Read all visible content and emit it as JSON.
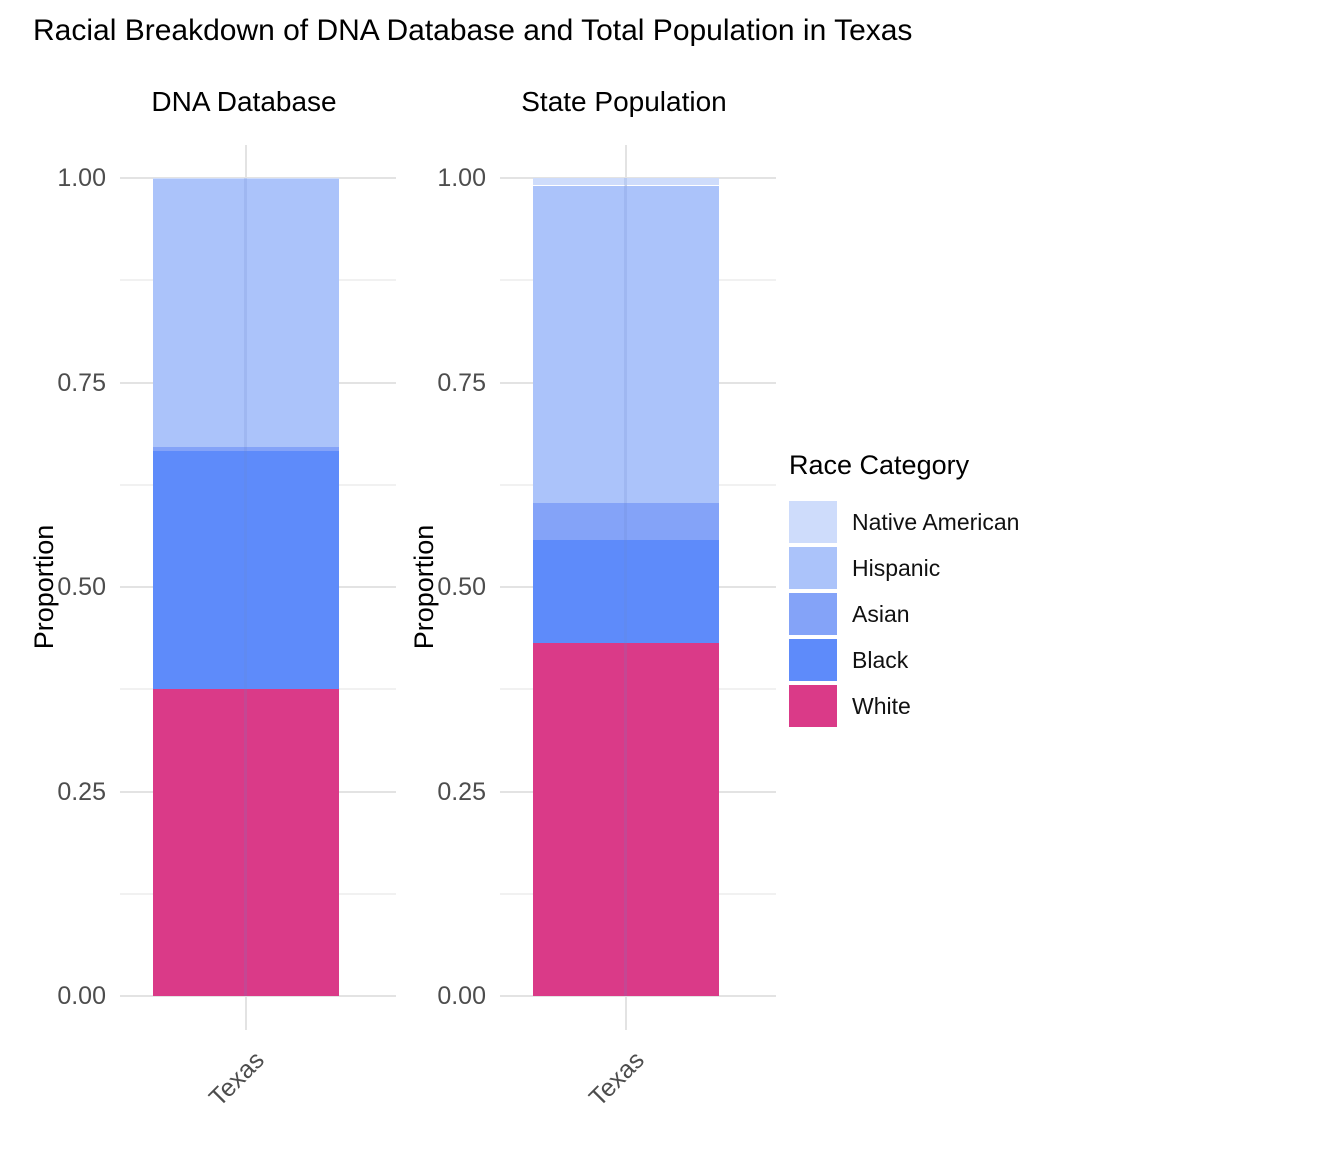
{
  "title": "Racial Breakdown of DNA Database and Total Population in Texas",
  "y_axis": {
    "label": "Proportion",
    "tick_labels": [
      "1.00",
      "0.75",
      "0.50",
      "0.25",
      "0.00"
    ]
  },
  "x_axis": {
    "category": "Texas"
  },
  "legend": {
    "title": "Race Category",
    "items": [
      {
        "label": "Native American",
        "color": "#CEDCFB"
      },
      {
        "label": "Hispanic",
        "color": "#ABC3FA"
      },
      {
        "label": "Asian",
        "color": "#84A3F8"
      },
      {
        "label": "Black",
        "color": "#5E8BFA"
      },
      {
        "label": "White",
        "color": "#DA3A88"
      }
    ]
  },
  "chart_data": {
    "type": "bar",
    "subtype": "stacked-proportion",
    "title": "Racial Breakdown of DNA Database and Total Population in Texas",
    "ylabel": "Proportion",
    "ylim": [
      0,
      1
    ],
    "yticks": [
      1.0,
      0.75,
      0.5,
      0.25,
      0.0
    ],
    "minor_gridlines": [
      0.875,
      0.625,
      0.375,
      0.125
    ],
    "grid": true,
    "legend_position": "right",
    "stack_order_bottom_to_top": [
      "White",
      "Black",
      "Asian",
      "Hispanic",
      "Native American"
    ],
    "series_colors": {
      "Native American": "#CEDCFB",
      "Hispanic": "#ABC3FA",
      "Asian": "#84A3F8",
      "Black": "#5E8BFA",
      "White": "#DA3A88"
    },
    "facets": [
      {
        "title": "DNA Database",
        "category": "Texas",
        "values": {
          "White": 0.375,
          "Black": 0.291,
          "Asian": 0.005,
          "Hispanic": 0.328,
          "Native American": 0.001
        }
      },
      {
        "title": "State Population",
        "category": "Texas",
        "values": {
          "White": 0.432,
          "Black": 0.126,
          "Asian": 0.045,
          "Hispanic": 0.388,
          "Native American": 0.009
        }
      }
    ]
  }
}
